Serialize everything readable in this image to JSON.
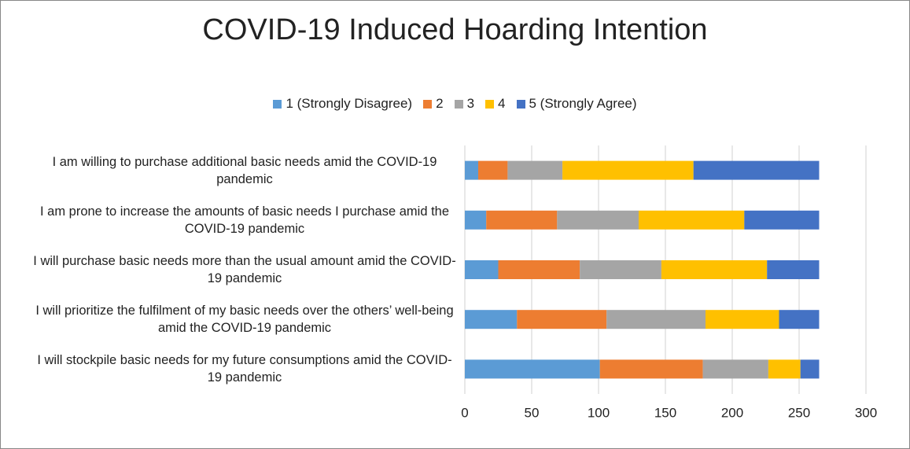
{
  "chart_data": {
    "type": "stacked_barh",
    "title": "COVID-19 Induced Hoarding Intention",
    "categories": [
      "I am willing to purchase additional basic needs amid the COVID-19 pandemic",
      "I am prone to increase the amounts of basic needs I purchase amid the COVID-19 pandemic",
      "I will purchase basic needs more than the usual amount amid the COVID-19 pandemic",
      "I will prioritize the fulfilment of my basic needs over the others’ well-being amid the COVID-19 pandemic",
      "I will stockpile basic needs for my future consumptions amid the COVID-19 pandemic"
    ],
    "series": [
      {
        "name": "1 (Strongly Disagree)",
        "color": "#5b9bd5",
        "values": [
          10,
          16,
          25,
          39,
          101
        ]
      },
      {
        "name": "2",
        "color": "#ed7d31",
        "values": [
          22,
          53,
          61,
          67,
          77
        ]
      },
      {
        "name": "3",
        "color": "#a5a5a5",
        "values": [
          41,
          61,
          61,
          74,
          49
        ]
      },
      {
        "name": "4",
        "color": "#ffc000",
        "values": [
          98,
          79,
          79,
          55,
          24
        ]
      },
      {
        "name": "5 (Strongly Agree)",
        "color": "#4472c4",
        "values": [
          94,
          56,
          39,
          30,
          14
        ]
      }
    ],
    "xlim": [
      0,
      300
    ],
    "xticks": [
      0,
      50,
      100,
      150,
      200,
      250,
      300
    ],
    "grid": true,
    "legend": "top"
  }
}
